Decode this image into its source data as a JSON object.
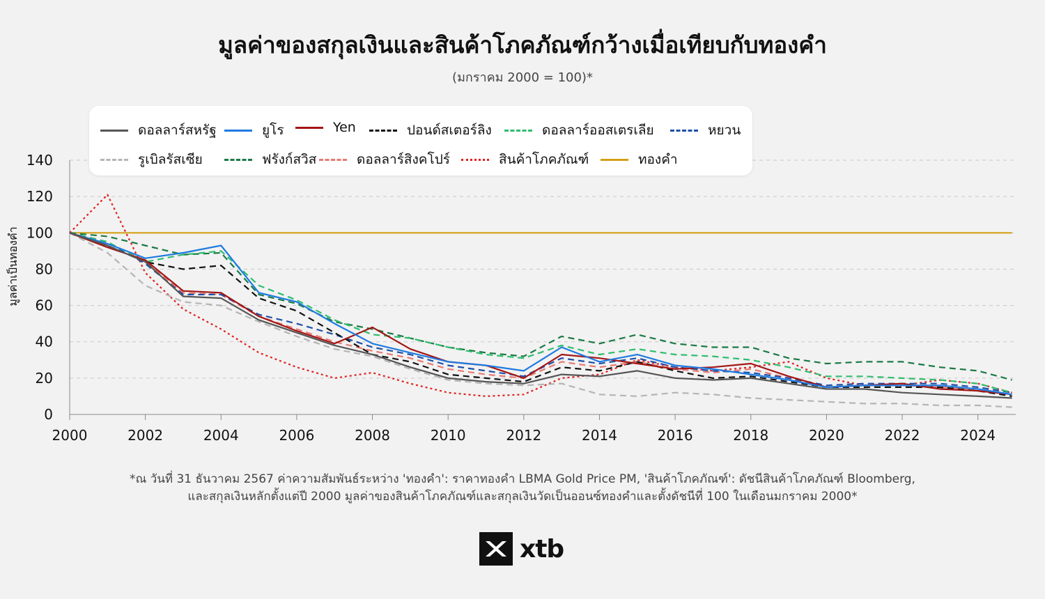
{
  "header": {
    "title": "มูลค่าของสกุลเงินและสินค้าโภคภัณฑ์กว้างเมื่อเทียบกับทองคำ",
    "subtitle": "(มกราคม 2000 = 100)*"
  },
  "footnote": {
    "line1": "*ณ วันที่ 31 ธันวาคม 2567 ค่าความสัมพันธ์ระหว่าง 'ทองคำ': ราคาทองคำ LBMA Gold Price PM, 'สินค้าโภคภัณฑ์': ดัชนีสินค้าโภคภัณฑ์ Bloomberg,",
    "line2": "และสกุลเงินหลักตั้งแต่ปี 2000 มูลค่าของสินค้าโภคภัณฑ์และสกุลเงินวัดเป็นออนซ์ทองคำและตั้งดัชนีที่ 100 ในเดือนมกราคม 2000*"
  },
  "brand": {
    "name": "xtb",
    "color": "#111111"
  },
  "chart_data": {
    "type": "line",
    "title": "มูลค่าของสกุลเงินและสินค้าโภคภัณฑ์กว้างเมื่อเทียบกับทองคำ",
    "ylabel": "มูลค่าเป็นทองคำ",
    "xlabel": "",
    "xlim": [
      2000,
      2025
    ],
    "ylim": [
      0,
      140
    ],
    "x_ticks": [
      "2000",
      "2002",
      "2004",
      "2006",
      "2008",
      "2010",
      "2012",
      "2014",
      "2016",
      "2018",
      "2020",
      "2022",
      "2024"
    ],
    "y_ticks": [
      "0",
      "20",
      "40",
      "60",
      "80",
      "100",
      "120",
      "140"
    ],
    "grid": true,
    "legend_position": "top",
    "x": [
      2000,
      2001,
      2002,
      2003,
      2004,
      2005,
      2006,
      2007,
      2008,
      2009,
      2010,
      2011,
      2012,
      2013,
      2014,
      2015,
      2016,
      2017,
      2018,
      2019,
      2020,
      2021,
      2022,
      2023,
      2024,
      2024.9
    ],
    "series": [
      {
        "name": "ดอลลาร์สหรัฐ",
        "color": "#555555",
        "dash": "solid",
        "values": [
          100,
          93,
          84,
          65,
          64,
          52,
          45,
          38,
          33,
          26,
          20,
          18,
          17,
          22,
          21,
          24,
          20,
          19,
          20,
          17,
          14,
          14,
          12,
          11,
          10,
          9
        ]
      },
      {
        "name": "ยูโร",
        "color": "#1e7be0",
        "dash": "solid",
        "values": [
          100,
          94,
          86,
          89,
          93,
          67,
          62,
          50,
          39,
          34,
          29,
          27,
          24,
          37,
          29,
          33,
          27,
          25,
          22,
          19,
          15,
          16,
          16,
          16,
          14,
          11
        ]
      },
      {
        "name": "Yen",
        "color": "#a31515",
        "dash": "solid",
        "values": [
          100,
          92,
          85,
          68,
          67,
          54,
          46,
          39,
          48,
          36,
          29,
          27,
          20,
          33,
          31,
          28,
          25,
          26,
          28,
          21,
          15,
          16,
          17,
          14,
          13,
          11
        ]
      },
      {
        "name": "ปอนด์สเตอร์ลิง",
        "color": "#111111",
        "dash": "dash",
        "values": [
          100,
          93,
          84,
          80,
          82,
          64,
          57,
          45,
          33,
          29,
          22,
          20,
          18,
          26,
          24,
          29,
          24,
          20,
          21,
          18,
          15,
          15,
          15,
          15,
          13,
          10
        ]
      },
      {
        "name": "ดอลลาร์ออสเตรเลีย",
        "color": "#2ebd6e",
        "dash": "dash",
        "values": [
          100,
          95,
          84,
          88,
          90,
          71,
          63,
          52,
          44,
          42,
          37,
          33,
          31,
          38,
          33,
          36,
          33,
          32,
          30,
          26,
          21,
          21,
          20,
          19,
          17,
          12
        ]
      },
      {
        "name": "หยวน",
        "color": "#1f4fa8",
        "dash": "dash",
        "values": [
          100,
          95,
          83,
          66,
          66,
          55,
          50,
          44,
          37,
          33,
          27,
          24,
          21,
          31,
          28,
          31,
          26,
          24,
          23,
          20,
          16,
          17,
          17,
          17,
          15,
          12
        ]
      },
      {
        "name": "รูเบิลรัสเซีย",
        "color": "#b5b5b5",
        "dash": "dash",
        "values": [
          100,
          89,
          71,
          62,
          60,
          51,
          43,
          36,
          32,
          25,
          19,
          17,
          16,
          17,
          11,
          10,
          12,
          11,
          9,
          8,
          7,
          6,
          6,
          5,
          5,
          4
        ]
      },
      {
        "name": "ฟรังก์สวิส",
        "color": "#1a7a45",
        "dash": "dash",
        "values": [
          100,
          98,
          93,
          88,
          89,
          66,
          61,
          51,
          47,
          42,
          37,
          34,
          32,
          43,
          39,
          44,
          39,
          37,
          37,
          31,
          28,
          29,
          29,
          26,
          24,
          19
        ]
      },
      {
        "name": "ดอลลาร์สิงคโปร์",
        "color": "#e87a72",
        "dash": "dash",
        "values": [
          100,
          93,
          84,
          67,
          66,
          54,
          47,
          40,
          35,
          31,
          25,
          22,
          20,
          29,
          26,
          29,
          25,
          23,
          25,
          20,
          15,
          16,
          16,
          15,
          14,
          11
        ]
      },
      {
        "name": "สินค้าโภคภัณฑ์",
        "color": "#e0201e",
        "dash": "dot",
        "values": [
          100,
          121,
          78,
          58,
          47,
          34,
          26,
          20,
          23,
          17,
          12,
          10,
          11,
          20,
          22,
          30,
          26,
          24,
          26,
          29,
          20,
          16,
          16,
          19,
          17,
          12
        ]
      },
      {
        "name": "ทองคำ",
        "color": "#d4a017",
        "dash": "solid",
        "values": [
          100,
          100,
          100,
          100,
          100,
          100,
          100,
          100,
          100,
          100,
          100,
          100,
          100,
          100,
          100,
          100,
          100,
          100,
          100,
          100,
          100,
          100,
          100,
          100,
          100,
          100
        ]
      }
    ]
  }
}
